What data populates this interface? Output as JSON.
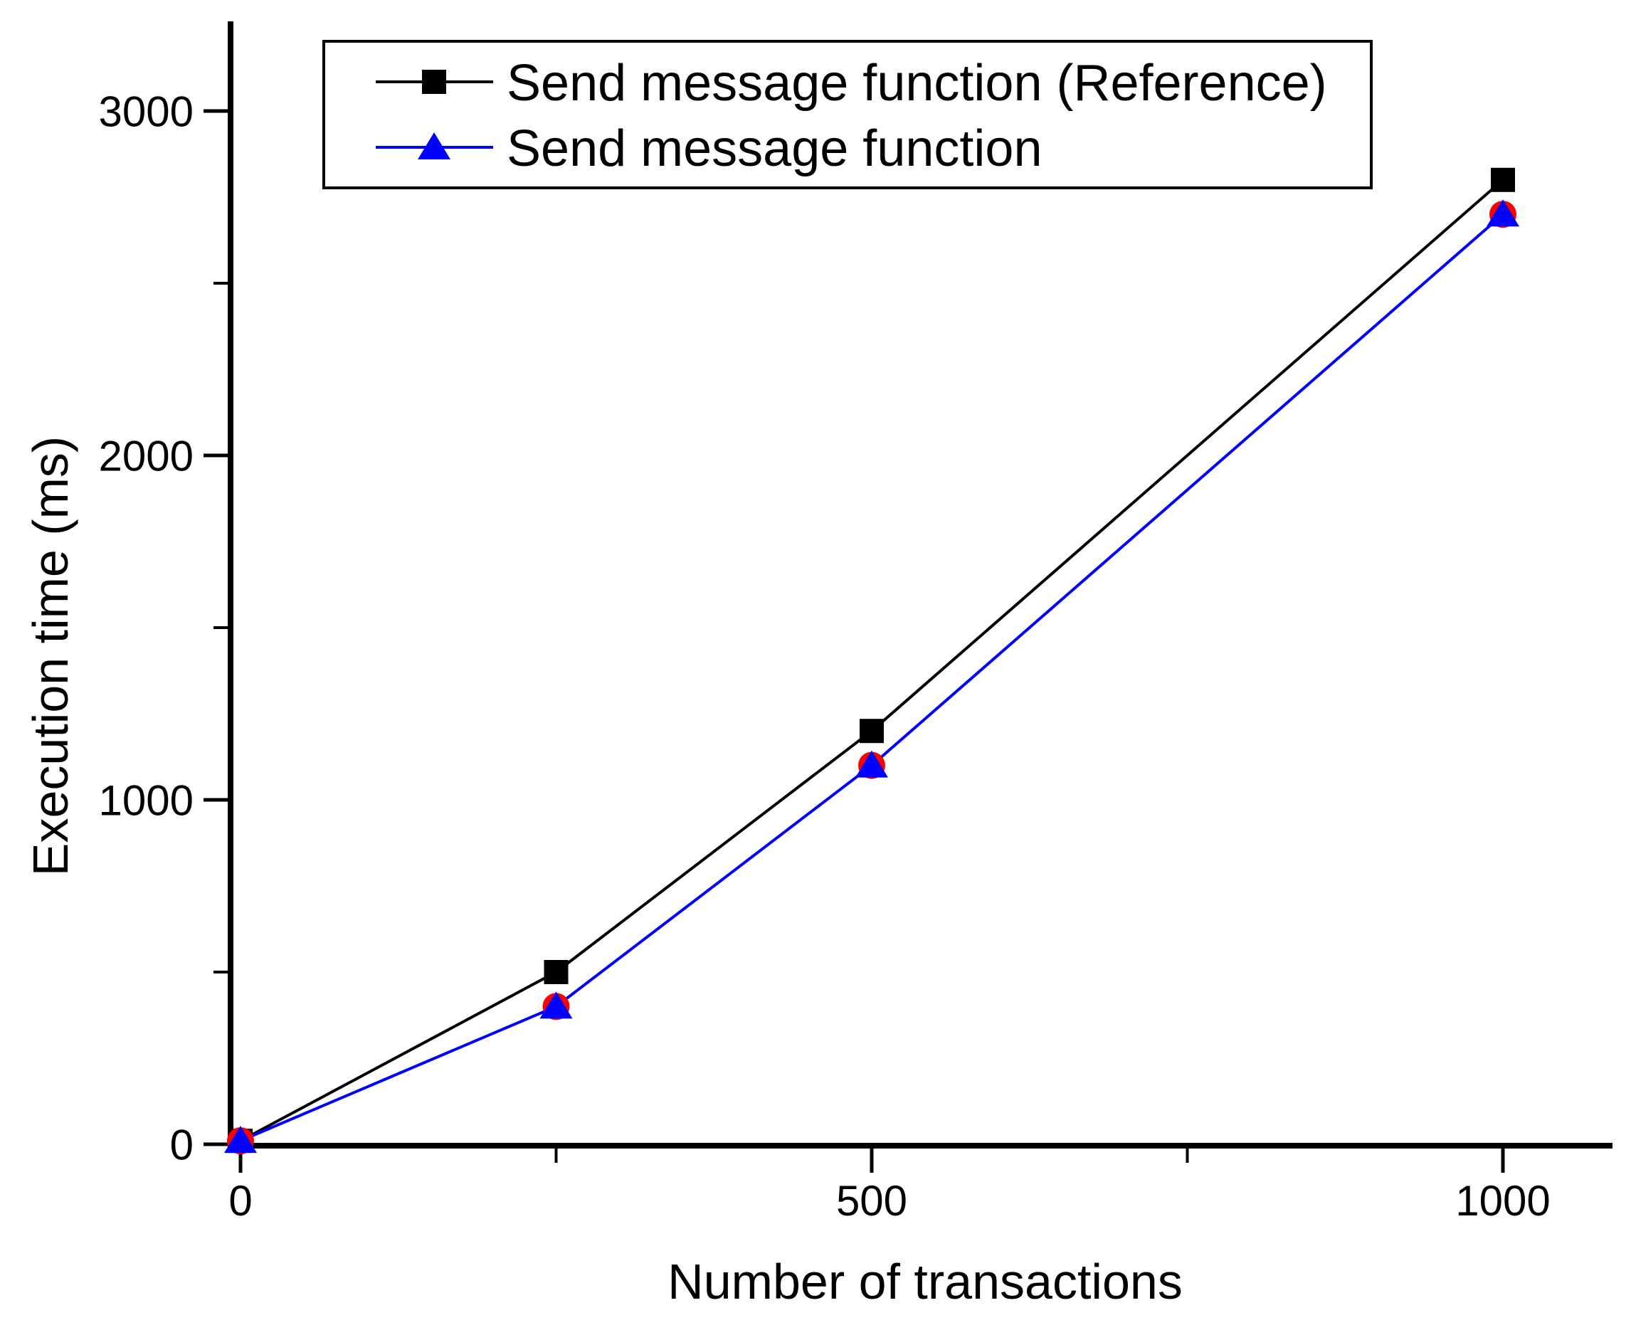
{
  "chart_data": {
    "type": "line",
    "title": "",
    "xlabel": "Number of transactions",
    "ylabel": "Execution time (ms)",
    "xlim": [
      -10,
      1090
    ],
    "ylim": [
      0,
      3260
    ],
    "x_major_ticks": [
      0,
      500,
      1000
    ],
    "x_minor_ticks": [
      250,
      750
    ],
    "y_major_ticks": [
      0,
      1000,
      2000,
      3000
    ],
    "y_minor_ticks": [
      500,
      1500,
      2500
    ],
    "grid": false,
    "legend_position": "top-left inside plot, boxed",
    "x": [
      0,
      250,
      500,
      1000
    ],
    "series": [
      {
        "name": "Send message function (Reference)",
        "color": "#000000",
        "marker": "square",
        "line": true,
        "in_legend": true,
        "values": [
          10,
          500,
          1200,
          2800
        ]
      },
      {
        "name": "",
        "note": "unlabeled red circle markers drawn behind the blue triangles",
        "color": "#FF0000",
        "marker": "circle",
        "line": false,
        "in_legend": false,
        "values": [
          10,
          400,
          1100,
          2700
        ]
      },
      {
        "name": "Send message function",
        "color": "#0000FF",
        "marker": "triangle",
        "line": true,
        "in_legend": true,
        "values": [
          10,
          400,
          1100,
          2700
        ]
      }
    ]
  },
  "colors": {
    "background": "#FFFFFF",
    "axis": "#000000",
    "reference_series": "#000000",
    "send_series": "#0000FF",
    "overlap_marker": "#FF0000"
  }
}
